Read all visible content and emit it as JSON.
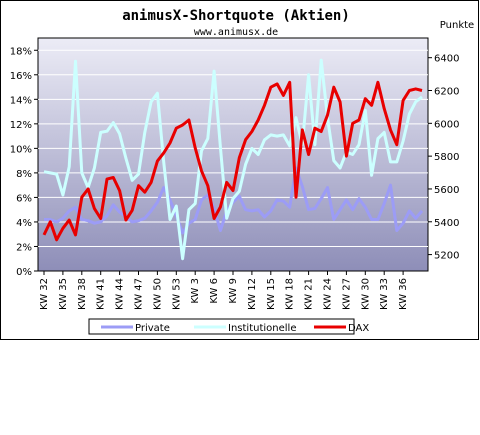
{
  "chart_data": {
    "type": "line",
    "title": "animusX-Shortquote (Aktien)",
    "subtitle": "www.animusx.de",
    "y2label": "Punkte",
    "ylim": [
      0,
      19
    ],
    "y2lim": [
      5100,
      6520
    ],
    "yticks": [
      "0%",
      "2%",
      "4%",
      "6%",
      "8%",
      "10%",
      "12%",
      "14%",
      "16%",
      "18%"
    ],
    "y2ticks": [
      "5200",
      "5400",
      "5600",
      "5800",
      "6000",
      "6200",
      "6400"
    ],
    "xticks": [
      "KW 32",
      "KW 35",
      "KW 38",
      "KW 41",
      "KW 44",
      "KW 47",
      "KW 50",
      "KW 53",
      "KW 3",
      "KW 6",
      "KW 9",
      "KW 12",
      "KW 15",
      "KW 18",
      "KW 21",
      "KW 24",
      "KW 27",
      "KW 30",
      "KW 33",
      "KW 36"
    ],
    "grid": true,
    "legend_position": "bottom",
    "series": [
      {
        "name": "Private",
        "axis": "left",
        "color": "#9c9cf6",
        "values": [
          4.2,
          4.2,
          4.0,
          4.3,
          4.9,
          5.2,
          4.2,
          4.1,
          3.9,
          4.0,
          4.5,
          5.4,
          4.8,
          4.4,
          4.0,
          4.1,
          4.3,
          4.9,
          5.6,
          6.8,
          5.8,
          4.5,
          3.1,
          3.9,
          4.2,
          5.8,
          6.2,
          5.1,
          3.3,
          4.9,
          5.6,
          6.1,
          5.0,
          4.9,
          5.0,
          4.4,
          4.9,
          5.8,
          5.7,
          5.2,
          8.4,
          6.9,
          5.0,
          5.1,
          5.9,
          6.8,
          4.2,
          5.0,
          5.8,
          5.0,
          5.9,
          5.2,
          4.2,
          4.2,
          5.5,
          7.0,
          3.3,
          3.9,
          4.9,
          4.3,
          4.9
        ]
      },
      {
        "name": "Institutionelle",
        "axis": "left",
        "color": "#ccffff",
        "values": [
          8.1,
          8.0,
          7.9,
          6.2,
          8.5,
          17.1,
          8.0,
          6.8,
          8.4,
          11.3,
          11.4,
          12.1,
          11.2,
          9.2,
          7.4,
          7.9,
          11.3,
          13.8,
          14.5,
          8.9,
          4.2,
          5.3,
          1.0,
          5.0,
          5.5,
          9.8,
          10.8,
          16.3,
          10.1,
          4.3,
          5.9,
          6.5,
          8.7,
          10.0,
          9.5,
          10.7,
          11.1,
          11.0,
          11.1,
          10.2,
          12.5,
          10.3,
          16.0,
          10.3,
          17.2,
          12.5,
          9.0,
          8.4,
          9.7,
          9.5,
          10.3,
          13.1,
          7.8,
          10.8,
          11.3,
          8.9,
          8.9,
          10.6,
          12.8,
          13.8,
          14.2
        ]
      },
      {
        "name": "DAX",
        "axis": "right",
        "color": "#e80000",
        "values": [
          5320,
          5400,
          5290,
          5360,
          5410,
          5320,
          5550,
          5600,
          5480,
          5420,
          5660,
          5670,
          5590,
          5410,
          5470,
          5620,
          5580,
          5640,
          5770,
          5820,
          5880,
          5970,
          5990,
          6020,
          5850,
          5710,
          5620,
          5420,
          5490,
          5640,
          5590,
          5790,
          5900,
          5950,
          6020,
          6110,
          6220,
          6240,
          6170,
          6250,
          5550,
          5960,
          5810,
          5970,
          5950,
          6050,
          6220,
          6130,
          5800,
          6000,
          6020,
          6150,
          6110,
          6250,
          6090,
          5960,
          5870,
          6140,
          6200,
          6210,
          6200
        ]
      }
    ]
  }
}
